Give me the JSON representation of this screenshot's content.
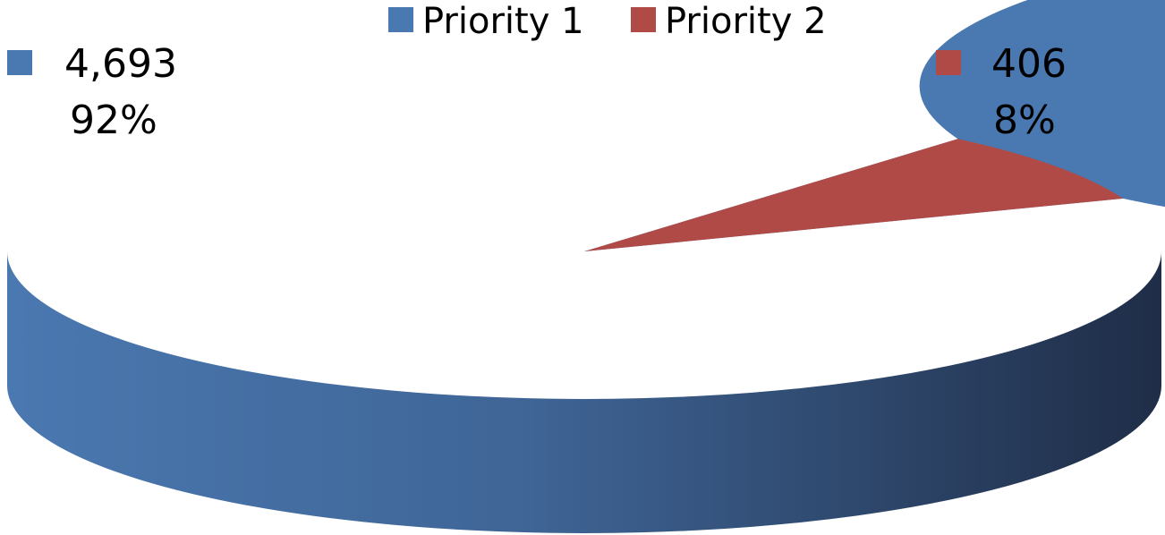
{
  "chart_data": {
    "type": "pie",
    "style": "3d",
    "title": "",
    "legend_position": "top",
    "slices": [
      {
        "name": "Priority 1",
        "value": 4693,
        "value_label": "4,693",
        "percent_label": "92%",
        "color": "#4a78b0"
      },
      {
        "name": "Priority 2",
        "value": 406,
        "value_label": "406",
        "percent_label": "8%",
        "color": "#b04a46"
      }
    ],
    "side_colors": [
      "#4a78b0",
      "#1f2d47"
    ]
  }
}
